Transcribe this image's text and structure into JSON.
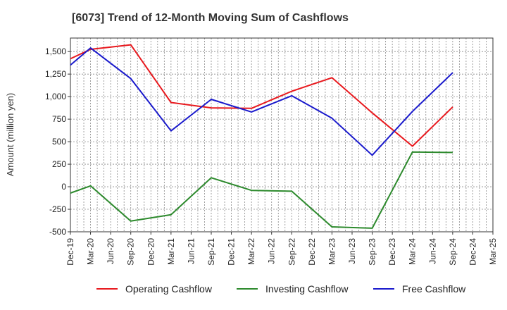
{
  "chart_data": {
    "type": "line",
    "title": "[6073]  Trend of 12-Month Moving Sum of Cashflows",
    "ylabel": "Amount (million yen)",
    "xlabel": "",
    "ylim": [
      -500,
      1650
    ],
    "yticks": [
      -500,
      -250,
      0,
      250,
      500,
      750,
      1000,
      1250,
      1500
    ],
    "ytick_labels": [
      "-500",
      "-250",
      "0",
      "250",
      "500",
      "750",
      "1,000",
      "1,250",
      "1,500"
    ],
    "categories": [
      "Dec-19",
      "Mar-20",
      "Jun-20",
      "Sep-20",
      "Dec-20",
      "Mar-21",
      "Jun-21",
      "Sep-21",
      "Dec-21",
      "Mar-22",
      "Jun-22",
      "Sep-22",
      "Dec-22",
      "Mar-23",
      "Jun-23",
      "Sep-23",
      "Dec-23",
      "Mar-24",
      "Jun-24",
      "Sep-24",
      "Dec-24",
      "Mar-25"
    ],
    "grid": true,
    "legend_position": "bottom",
    "series": [
      {
        "name": "Operating Cashflow",
        "color": "#e8191e",
        "values": [
          1420,
          1525,
          null,
          1575,
          null,
          935,
          null,
          875,
          null,
          870,
          null,
          1060,
          null,
          1210,
          null,
          820,
          null,
          450,
          null,
          885,
          null,
          null
        ]
      },
      {
        "name": "Investing Cashflow",
        "color": "#2d8a2d",
        "values": [
          -70,
          10,
          null,
          -380,
          null,
          -310,
          null,
          100,
          null,
          -40,
          null,
          -50,
          null,
          -445,
          null,
          -460,
          null,
          385,
          null,
          380,
          null,
          null
        ]
      },
      {
        "name": "Free Cashflow",
        "color": "#1a1acc",
        "values": [
          1350,
          1540,
          null,
          1200,
          null,
          620,
          null,
          970,
          null,
          830,
          null,
          1010,
          null,
          760,
          null,
          350,
          null,
          835,
          null,
          1265,
          null,
          null
        ]
      }
    ]
  }
}
